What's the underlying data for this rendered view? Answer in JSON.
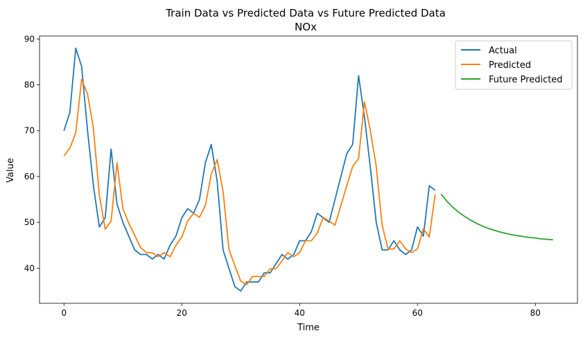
{
  "chart_data": {
    "type": "line",
    "title": "Train Data vs Predicted Data vs Future Predicted Data",
    "subtitle": "NOx",
    "xlabel": "Time",
    "ylabel": "Value",
    "xlim": [
      -4.15,
      87.15
    ],
    "ylim": [
      32.35,
      90.65
    ],
    "xticks": [
      0,
      20,
      40,
      60,
      80
    ],
    "yticks": [
      40,
      50,
      60,
      70,
      80,
      90
    ],
    "grid": false,
    "legend_position": "top-right",
    "series": [
      {
        "name": "Actual",
        "color": "#1f77b4",
        "x": [
          0,
          1,
          2,
          3,
          4,
          5,
          6,
          7,
          8,
          9,
          10,
          11,
          12,
          13,
          14,
          15,
          16,
          17,
          18,
          19,
          20,
          21,
          22,
          23,
          24,
          25,
          26,
          27,
          28,
          29,
          30,
          31,
          32,
          33,
          34,
          35,
          36,
          37,
          38,
          39,
          40,
          41,
          42,
          43,
          44,
          45,
          46,
          47,
          48,
          49,
          50,
          51,
          52,
          53,
          54,
          55,
          56,
          57,
          58,
          59,
          60,
          61,
          62,
          63
        ],
        "values": [
          70,
          74,
          88,
          84,
          70,
          58,
          49,
          51,
          66,
          54,
          50,
          47,
          44,
          43,
          43,
          42,
          43,
          42,
          45,
          47,
          51,
          53,
          52,
          55,
          63,
          67,
          59,
          44,
          40,
          36,
          35,
          37,
          37,
          37,
          39,
          39,
          41,
          43,
          42,
          43,
          46,
          46,
          48,
          52,
          51,
          50,
          55,
          60,
          65,
          67,
          82,
          73,
          62,
          50,
          44,
          44,
          46,
          44,
          43,
          44,
          49,
          47,
          58,
          57
        ]
      },
      {
        "name": "Predicted",
        "color": "#ff7f0e",
        "x": [
          0,
          1,
          2,
          3,
          4,
          5,
          6,
          7,
          8,
          9,
          10,
          11,
          12,
          13,
          14,
          15,
          16,
          17,
          18,
          19,
          20,
          21,
          22,
          23,
          24,
          25,
          26,
          27,
          28,
          29,
          30,
          31,
          32,
          33,
          34,
          35,
          36,
          37,
          38,
          39,
          40,
          41,
          42,
          43,
          44,
          45,
          46,
          47,
          48,
          49,
          50,
          51,
          52,
          53,
          54,
          55,
          56,
          57,
          58,
          59,
          60,
          61,
          62,
          63
        ],
        "values": [
          64.5,
          66.2,
          69.5,
          81.2,
          78.0,
          70.5,
          56.0,
          48.5,
          50.3,
          63.0,
          53.0,
          49.8,
          47.2,
          44.5,
          43.4,
          43.4,
          42.5,
          43.4,
          42.5,
          45.0,
          46.8,
          50.3,
          52.0,
          51.1,
          53.7,
          60.5,
          63.7,
          56.8,
          44.1,
          40.6,
          37.2,
          36.4,
          38.2,
          38.2,
          38.2,
          39.9,
          39.9,
          41.6,
          43.4,
          42.5,
          43.4,
          46.0,
          46.0,
          47.7,
          51.1,
          50.3,
          49.4,
          53.7,
          58.0,
          62.2,
          63.9,
          76.3,
          70.0,
          62.2,
          49.4,
          44.2,
          44.2,
          46.0,
          44.2,
          43.4,
          44.2,
          48.6,
          46.8,
          56.1
        ]
      },
      {
        "name": "Future Predicted",
        "color": "#2ca02c",
        "x": [
          64,
          65,
          66,
          67,
          68,
          69,
          70,
          71,
          72,
          73,
          74,
          75,
          76,
          77,
          78,
          79,
          80,
          81,
          82,
          83
        ],
        "values": [
          56.2,
          54.6,
          53.3,
          52.2,
          51.3,
          50.5,
          49.8,
          49.2,
          48.7,
          48.3,
          47.9,
          47.6,
          47.3,
          47.1,
          46.9,
          46.7,
          46.6,
          46.4,
          46.3,
          46.2
        ]
      }
    ]
  }
}
